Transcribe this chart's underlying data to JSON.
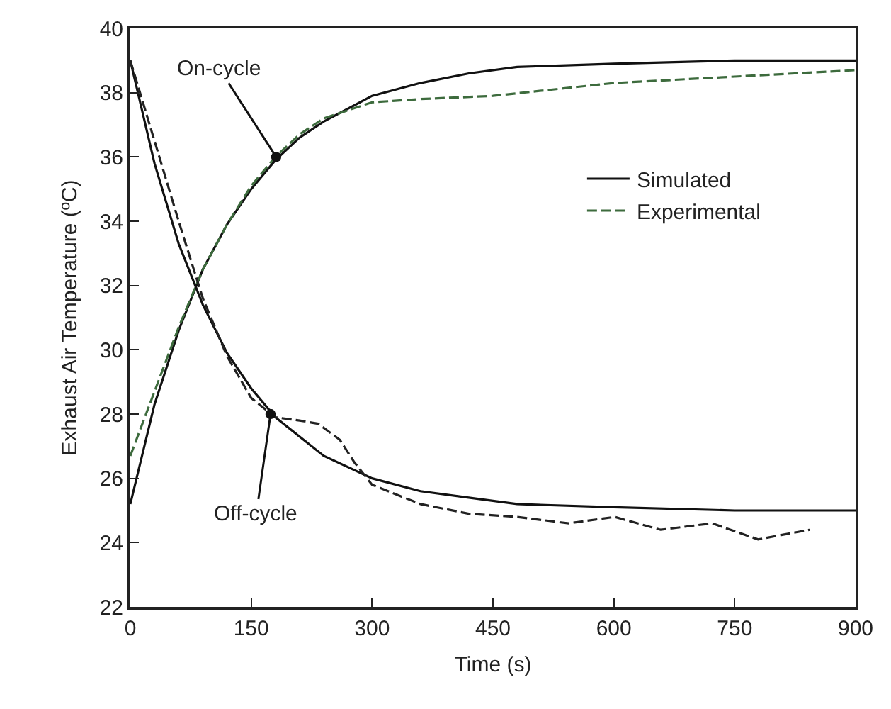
{
  "chart_data": {
    "type": "line",
    "xlabel": "Time (s)",
    "ylabel": "Exhaust Air Temperature (ºC)",
    "xlim": [
      0,
      900
    ],
    "xticks": [
      0,
      150,
      300,
      450,
      600,
      750,
      900
    ],
    "ylim": [
      22,
      40
    ],
    "yticks": [
      22,
      24,
      26,
      28,
      30,
      32,
      34,
      36,
      38,
      40
    ],
    "grid": false,
    "legend": "top right",
    "series": [
      {
        "name": "Simulated",
        "color": "#111111",
        "line_style": "solid",
        "x": [
          0,
          30,
          60,
          90,
          120,
          150,
          180,
          210,
          240,
          300,
          360,
          420,
          480,
          600,
          750,
          900
        ],
        "values": [
          25.2,
          28.3,
          30.6,
          32.5,
          33.9,
          35.0,
          35.9,
          36.6,
          37.1,
          37.9,
          38.3,
          38.6,
          38.8,
          38.9,
          39.0,
          39.0
        ]
      },
      {
        "name": "Experimental",
        "color": "#3d6b3d",
        "line_style": "dashed",
        "x": [
          0,
          30,
          60,
          90,
          120,
          150,
          180,
          210,
          240,
          300,
          360,
          450,
          600,
          750,
          900
        ],
        "values": [
          26.7,
          28.7,
          30.7,
          32.5,
          33.9,
          35.1,
          36.0,
          36.7,
          37.2,
          37.7,
          37.8,
          37.9,
          38.3,
          38.5,
          38.7
        ]
      },
      {
        "color": "#111111",
        "line_style": "solid",
        "x": [
          0,
          30,
          60,
          90,
          120,
          150,
          180,
          210,
          240,
          300,
          360,
          420,
          480,
          600,
          750,
          900
        ],
        "values": [
          39.0,
          35.8,
          33.3,
          31.4,
          29.9,
          28.8,
          27.9,
          27.3,
          26.7,
          26.0,
          25.6,
          25.4,
          25.2,
          25.1,
          25.0,
          25.0
        ]
      },
      {
        "color": "#222222",
        "line_style": "dashed",
        "x": [
          0,
          30,
          60,
          90,
          120,
          150,
          180,
          210,
          233,
          260,
          278,
          300,
          360,
          420,
          480,
          544,
          601,
          658,
          722,
          779,
          843
        ],
        "values": [
          39.0,
          36.5,
          34.0,
          31.6,
          29.8,
          28.5,
          27.9,
          27.8,
          27.7,
          27.2,
          26.5,
          25.8,
          25.2,
          24.9,
          24.8,
          24.6,
          24.8,
          24.4,
          24.6,
          24.1,
          24.4
        ]
      }
    ],
    "annotations": [
      {
        "text": "On-cycle",
        "x": 181,
        "y": 36
      },
      {
        "text": "Off-cycle",
        "x": 174,
        "y": 28
      }
    ]
  }
}
